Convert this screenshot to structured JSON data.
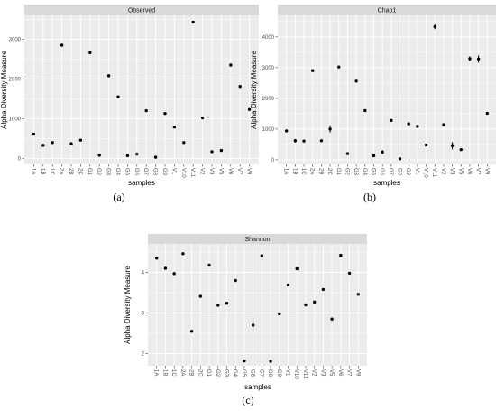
{
  "samples": [
    "1A",
    "1B",
    "1C",
    "2A",
    "2B",
    "2C",
    "G1",
    "G2",
    "G3",
    "G4",
    "G5",
    "G6",
    "G7",
    "G8",
    "G9",
    "V1",
    "V10",
    "V11",
    "V2",
    "V3",
    "V5",
    "V6",
    "V7",
    "V9"
  ],
  "colors": {
    "panel": "#ebebeb",
    "grid": "#ffffff",
    "strip": "#d9d9d9",
    "point": "#000000"
  },
  "chart_data": [
    {
      "type": "scatter",
      "title": "Observed",
      "xlabel": "samples",
      "ylabel": "Alpha Diversity Measure",
      "caption": "(a)",
      "ylim": [
        -150,
        3600
      ],
      "yticks": [
        0,
        1000,
        2000,
        3000
      ],
      "ytick_labels": [
        "0",
        "1000",
        "2000",
        "3000"
      ],
      "grid": true,
      "values": [
        610,
        330,
        400,
        2850,
        370,
        460,
        2660,
        80,
        2080,
        1550,
        70,
        110,
        1200,
        30,
        1130,
        790,
        400,
        3430,
        1020,
        170,
        200,
        2350,
        1810,
        1230
      ]
    },
    {
      "type": "scatter",
      "title": "Chao1",
      "xlabel": "samples",
      "ylabel": "Alpha Diversity Measure",
      "caption": "(b)",
      "ylim": [
        -150,
        4700
      ],
      "yticks": [
        0,
        1000,
        2000,
        3000,
        4000
      ],
      "ytick_labels": [
        "0",
        "1000",
        "2000",
        "3000",
        "4000"
      ],
      "grid": true,
      "values": [
        940,
        620,
        610,
        2900,
        620,
        1000,
        3020,
        200,
        2560,
        1600,
        130,
        250,
        1280,
        30,
        1170,
        1090,
        480,
        4330,
        1140,
        460,
        330,
        3290,
        3280,
        1510
      ],
      "errors": [
        0,
        60,
        0,
        0,
        40,
        120,
        0,
        0,
        0,
        0,
        0,
        70,
        0,
        0,
        0,
        0,
        0,
        80,
        0,
        120,
        0,
        80,
        120,
        0
      ]
    },
    {
      "type": "scatter",
      "title": "Shannon",
      "xlabel": "samples",
      "ylabel": "Alpha Diversity Measure",
      "caption": "(c)",
      "ylim": [
        1.7,
        4.7
      ],
      "yticks": [
        2,
        3,
        4
      ],
      "ytick_labels": [
        "2",
        "3",
        "4"
      ],
      "grid": true,
      "values": [
        4.35,
        4.1,
        3.97,
        4.46,
        2.55,
        3.41,
        4.18,
        3.19,
        3.24,
        3.8,
        1.82,
        2.7,
        4.41,
        1.81,
        2.98,
        3.69,
        4.09,
        3.2,
        3.27,
        3.58,
        2.85,
        4.42,
        3.98,
        3.46
      ]
    }
  ]
}
